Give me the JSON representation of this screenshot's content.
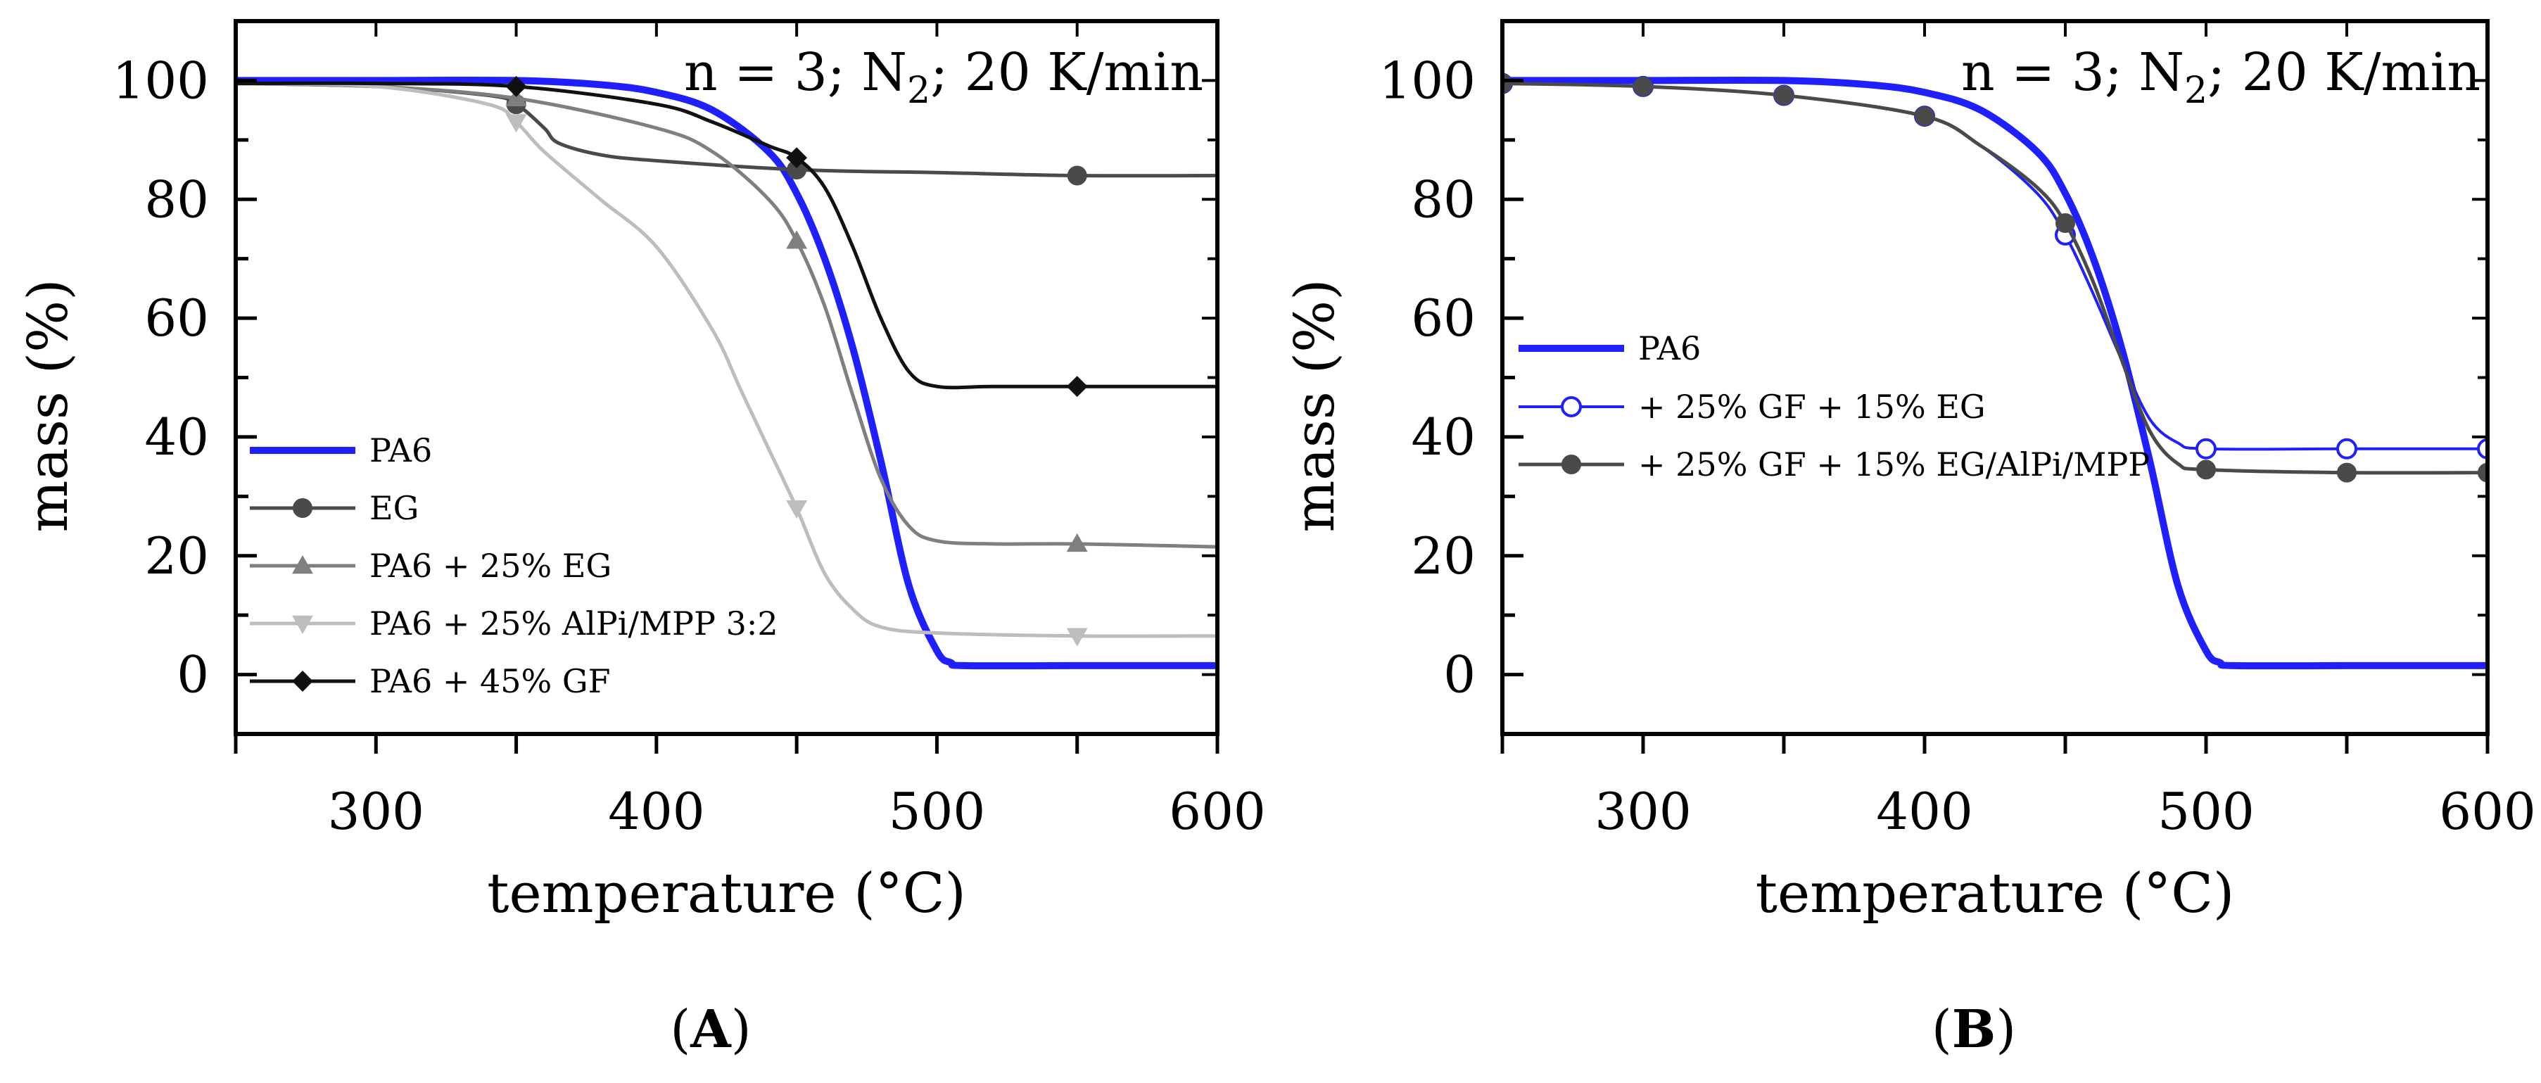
{
  "chart_data": [
    {
      "type": "line",
      "panel": "A",
      "caption_open": "(",
      "caption_letter": "A",
      "caption_close": ")",
      "annotation": {
        "prefix": "n = 3; N",
        "subscript": "2",
        "suffix": "; 20 K/min"
      },
      "xlabel": "temperature (°C)",
      "ylabel": "mass (%)",
      "xlim": [
        250,
        600
      ],
      "ylim": [
        -10,
        110
      ],
      "xticks": [
        300,
        400,
        500,
        600
      ],
      "yticks": [
        0,
        20,
        40,
        60,
        80,
        100
      ],
      "legend_position": "bottom-left",
      "series": [
        {
          "name": "PA6",
          "color": "#1f1fff",
          "marker": "none",
          "width": 10,
          "x": [
            250,
            300,
            350,
            380,
            400,
            420,
            440,
            450,
            460,
            470,
            480,
            490,
            500,
            505,
            510,
            550,
            600
          ],
          "y": [
            100,
            100,
            100,
            99.3,
            98,
            95,
            88,
            81,
            70,
            55,
            36,
            15,
            4,
            2,
            1.5,
            1.5,
            1.5
          ],
          "marker_x": []
        },
        {
          "name": "EG",
          "color": "#4a4a4a",
          "marker": "circle",
          "width": 5,
          "x": [
            250,
            300,
            340,
            350,
            360,
            365,
            380,
            400,
            450,
            500,
            550,
            600
          ],
          "y": [
            99.5,
            99,
            97.5,
            96,
            92,
            89.5,
            87.5,
            86.5,
            85,
            84.5,
            84,
            84
          ],
          "marker_x": [
            350,
            450,
            550
          ]
        },
        {
          "name": "PA6 + 25% EG",
          "color": "#7f7f7f",
          "marker": "triangle-up",
          "width": 5,
          "x": [
            250,
            300,
            350,
            400,
            420,
            440,
            450,
            460,
            470,
            480,
            490,
            500,
            520,
            550,
            600
          ],
          "y": [
            99.5,
            99,
            97,
            92,
            88,
            80,
            73,
            62,
            47,
            33,
            25,
            22.5,
            22,
            22,
            21.5
          ],
          "marker_x": [
            350,
            450,
            550
          ]
        },
        {
          "name": "PA6 + 25% AlPi/MPP 3:2",
          "color": "#bdbdbd",
          "marker": "triangle-down",
          "width": 5,
          "x": [
            250,
            300,
            340,
            350,
            360,
            380,
            400,
            420,
            430,
            440,
            450,
            460,
            470,
            480,
            500,
            550,
            600
          ],
          "y": [
            99.5,
            99,
            96,
            93,
            88,
            80,
            72,
            58,
            48,
            38,
            28,
            17,
            11,
            8,
            7,
            6.5,
            6.5
          ],
          "marker_x": [
            350,
            450,
            550
          ]
        },
        {
          "name": "PA6 + 45% GF",
          "color": "#111111",
          "marker": "diamond",
          "width": 5,
          "x": [
            250,
            300,
            350,
            400,
            420,
            440,
            450,
            460,
            470,
            480,
            490,
            500,
            520,
            550,
            600
          ],
          "y": [
            99.5,
            99.5,
            99,
            96,
            93,
            89,
            87,
            82,
            72,
            60,
            51,
            48.5,
            48.5,
            48.5,
            48.5
          ],
          "marker_x": [
            350,
            450,
            550
          ]
        }
      ]
    },
    {
      "type": "line",
      "panel": "B",
      "caption_open": "(",
      "caption_letter": "B",
      "caption_close": ")",
      "annotation": {
        "prefix": "n = 3; N",
        "subscript": "2",
        "suffix": "; 20 K/min"
      },
      "xlabel": "temperature (°C)",
      "ylabel": "mass (%)",
      "xlim": [
        250,
        600
      ],
      "ylim": [
        -10,
        110
      ],
      "xticks": [
        300,
        400,
        500,
        600
      ],
      "yticks": [
        0,
        20,
        40,
        60,
        80,
        100
      ],
      "legend_position": "middle-left",
      "series": [
        {
          "name": "PA6",
          "color": "#1f1fff",
          "marker": "none",
          "width": 10,
          "x": [
            250,
            300,
            350,
            380,
            400,
            420,
            440,
            450,
            460,
            470,
            480,
            490,
            500,
            505,
            510,
            550,
            600
          ],
          "y": [
            100,
            100,
            100,
            99.3,
            98,
            95,
            88,
            81,
            70,
            55,
            36,
            15,
            4,
            2,
            1.5,
            1.5,
            1.5
          ],
          "marker_x": []
        },
        {
          "name": "+ 25% GF + 15% EG",
          "color": "#1f1fff",
          "marker": "circle-open",
          "width": 4,
          "x": [
            250,
            300,
            350,
            400,
            420,
            440,
            450,
            460,
            470,
            480,
            490,
            500,
            550,
            600
          ],
          "y": [
            99.5,
            99,
            97.5,
            94,
            89,
            81,
            74,
            64,
            53,
            43,
            39,
            38,
            38,
            38
          ],
          "marker_x": [
            250,
            300,
            350,
            400,
            450,
            500,
            550,
            600
          ]
        },
        {
          "name": "+ 25% GF + 15% EG/AlPi/MPP",
          "color": "#4a4a4a",
          "marker": "circle",
          "width": 5,
          "x": [
            250,
            300,
            350,
            400,
            420,
            440,
            450,
            460,
            470,
            480,
            490,
            500,
            550,
            600
          ],
          "y": [
            99.5,
            99,
            97.5,
            94,
            89,
            82,
            76,
            66,
            53,
            41,
            35.5,
            34.5,
            34,
            34
          ],
          "marker_x": [
            250,
            300,
            350,
            400,
            450,
            500,
            550,
            600
          ]
        }
      ]
    }
  ]
}
